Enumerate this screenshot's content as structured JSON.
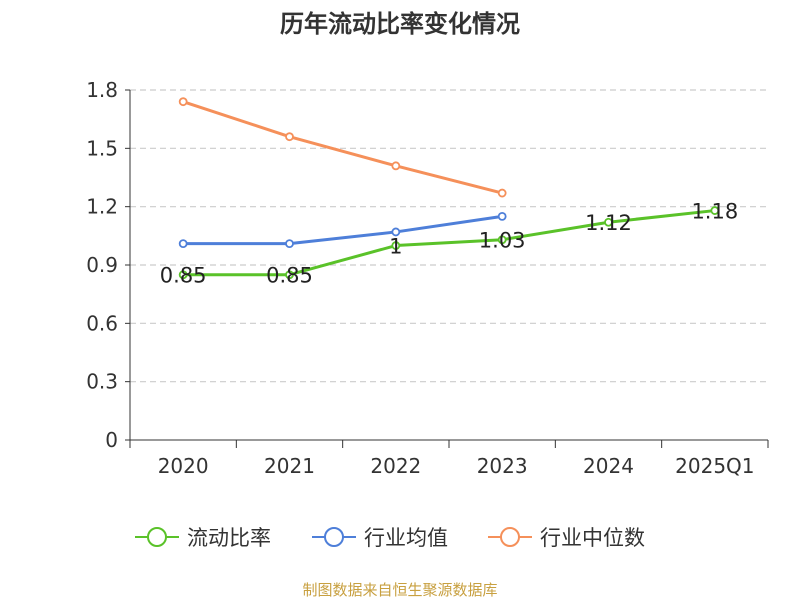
{
  "chart_data": {
    "type": "line",
    "title": "历年流动比率变化情况",
    "categories": [
      "2020",
      "2021",
      "2022",
      "2023",
      "2024",
      "2025Q1"
    ],
    "ylim": [
      0,
      1.8
    ],
    "yticks": [
      "0",
      "0.3",
      "0.6",
      "0.9",
      "1.2",
      "1.5",
      "1.8"
    ],
    "grid": true,
    "legend_position": "bottom",
    "series": [
      {
        "name": "流动比率",
        "color": "#5ac229",
        "values": [
          0.85,
          0.85,
          1.0,
          1.03,
          1.12,
          1.18
        ],
        "labels": [
          "0.85",
          "0.85",
          "1",
          "1.03",
          "1.12",
          "1.18"
        ]
      },
      {
        "name": "行业均值",
        "color": "#4e7fd9",
        "values": [
          1.01,
          1.01,
          1.07,
          1.15,
          null,
          null
        ]
      },
      {
        "name": "行业中位数",
        "color": "#f5905a",
        "values": [
          1.74,
          1.56,
          1.41,
          1.27,
          null,
          null
        ]
      }
    ]
  },
  "footer": {
    "source": "制图数据来自恒生聚源数据库",
    "color": "#c8a040"
  }
}
